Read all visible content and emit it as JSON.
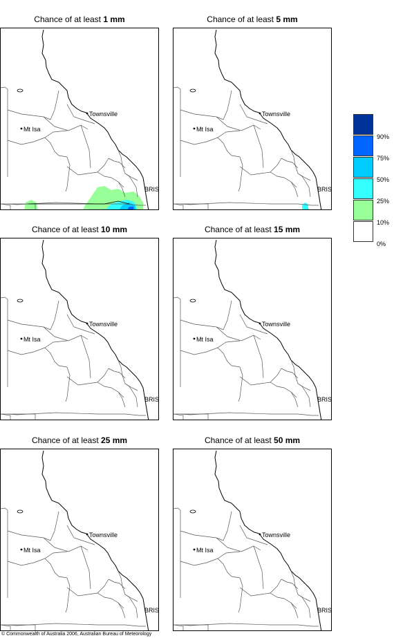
{
  "panels": [
    {
      "title_prefix": "Chance of at least ",
      "threshold": "1 mm",
      "rain": true
    },
    {
      "title_prefix": "Chance of at least ",
      "threshold": "5 mm",
      "rain": "small"
    },
    {
      "title_prefix": "Chance of at least ",
      "threshold": "10 mm",
      "rain": false
    },
    {
      "title_prefix": "Chance of at least ",
      "threshold": "15 mm",
      "rain": false
    },
    {
      "title_prefix": "Chance of at least ",
      "threshold": "25 mm",
      "rain": false
    },
    {
      "title_prefix": "Chance of at least ",
      "threshold": "50 mm",
      "rain": false
    }
  ],
  "places": {
    "townsville": "Townsville",
    "mt_isa": "Mt Isa",
    "brisbane": "BRIS"
  },
  "legend": {
    "colors": [
      "#003399",
      "#0066ff",
      "#00ccff",
      "#33ffff",
      "#99ff99",
      "#ffffff"
    ],
    "labels": [
      "90%",
      "75%",
      "50%",
      "25%",
      "10%",
      "0%"
    ]
  },
  "copyright": "© Commonwealth of Australia 2006, Australian Bureau of Meteorology"
}
